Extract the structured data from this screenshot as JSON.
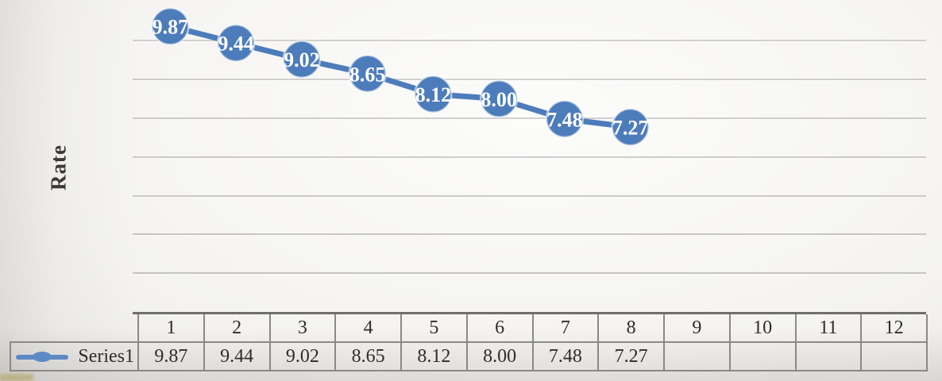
{
  "chart_data": {
    "type": "line",
    "title": "",
    "xlabel": "",
    "ylabel": "Rate",
    "categories": [
      "1",
      "2",
      "3",
      "4",
      "5",
      "6",
      "7",
      "8",
      "9",
      "10",
      "11",
      "12"
    ],
    "series": [
      {
        "name": "Series1",
        "values": [
          9.87,
          9.44,
          9.02,
          8.65,
          8.12,
          8.0,
          7.48,
          7.27,
          null,
          null,
          null,
          null
        ],
        "display_values": [
          "9.87",
          "9.44",
          "9.02",
          "8.65",
          "8.12",
          "8.00",
          "7.48",
          "7.27",
          "",
          "",
          "",
          ""
        ]
      }
    ],
    "point_labels": [
      "9.87",
      "9.44",
      "9.02",
      "8.65",
      "8.12",
      "8.00",
      "7.48",
      "7.27"
    ],
    "ylim": [
      2.5,
      10.55
    ],
    "gridline_values": [
      9.5,
      8.5,
      7.5,
      6.5,
      5.5,
      4.5,
      3.5
    ],
    "grid": "horizontal-only",
    "y_tick_labels_shown": false,
    "legend_position": "data-table-left",
    "marker_style": "large-circle",
    "data_table_shown": true
  },
  "colors": {
    "series_blue": "#4d7cbb",
    "legend_key_blue": "#5d8ac5",
    "marker_halo": "rgba(255,255,255,0.55)",
    "point_label_text": "#ffffff",
    "gridline_gray": "#949290",
    "axis_line": "#5d5c5a",
    "table_border": "#8a8987",
    "table_text": "#2e2d2b",
    "axis_title_text": "#3a3938",
    "corner_artifact": "#b0a052"
  }
}
